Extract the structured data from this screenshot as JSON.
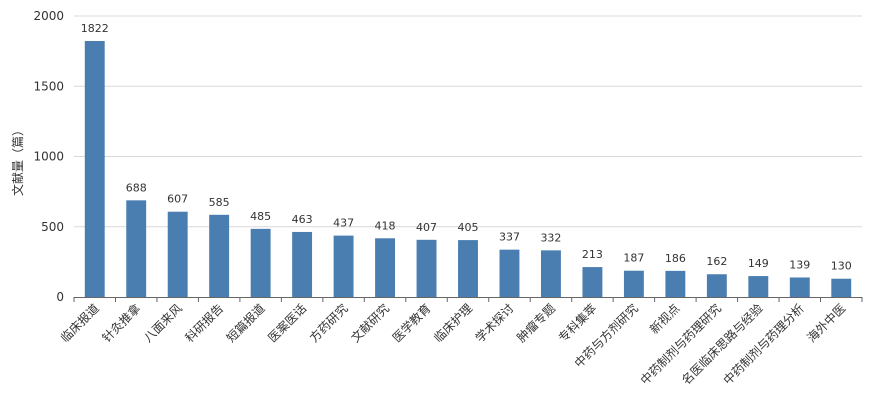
{
  "chart_data": {
    "type": "bar",
    "ylabel": "文献量（篇）",
    "ylim": [
      0,
      2000
    ],
    "yticks": [
      0,
      500,
      1000,
      1500,
      2000
    ],
    "grid": true,
    "categories": [
      "临床报道",
      "针灸推拿",
      "八面来风",
      "科研报告",
      "短篇报道",
      "医案医话",
      "方药研究",
      "文献研究",
      "医学教育",
      "临床护理",
      "学术探讨",
      "肿瘤专题",
      "专科集萃",
      "中药与方剂研究",
      "新视点",
      "中药制剂与药理研究",
      "名医临床思路与经验",
      "中药制剂与药理分析",
      "海外中医"
    ],
    "values": [
      1822,
      688,
      607,
      585,
      485,
      463,
      437,
      418,
      407,
      405,
      337,
      332,
      213,
      187,
      186,
      162,
      149,
      139,
      130
    ],
    "colors": {
      "bar": "#4a7eb0",
      "grid": "#d9d9d9",
      "axis": "#333333",
      "text": "#333333"
    }
  }
}
